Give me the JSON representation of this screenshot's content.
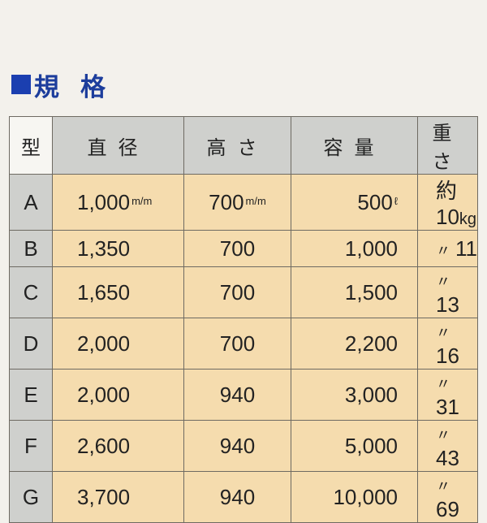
{
  "title": "規格",
  "columns": [
    "型",
    "直径",
    "高さ",
    "容量",
    "重さ"
  ],
  "rows": [
    {
      "type": "A",
      "diameter": "1,000",
      "diameter_unit": "m/m",
      "height": "700",
      "height_unit": "m/m",
      "capacity": "500",
      "capacity_unit": "ℓ",
      "weight_prefix": "約",
      "weight": "10",
      "weight_unit": "kg"
    },
    {
      "type": "B",
      "diameter": "1,350",
      "height": "700",
      "capacity": "1,000",
      "weight_prefix": "〃",
      "weight": "11"
    },
    {
      "type": "C",
      "diameter": "1,650",
      "height": "700",
      "capacity": "1,500",
      "weight_prefix": "〃",
      "weight": "13"
    },
    {
      "type": "D",
      "diameter": "2,000",
      "height": "700",
      "capacity": "2,200",
      "weight_prefix": "〃",
      "weight": "16"
    },
    {
      "type": "E",
      "diameter": "2,000",
      "height": "940",
      "capacity": "3,000",
      "weight_prefix": "〃",
      "weight": "31"
    },
    {
      "type": "F",
      "diameter": "2,600",
      "height": "940",
      "capacity": "5,000",
      "weight_prefix": "〃",
      "weight": "43"
    },
    {
      "type": "G",
      "diameter": "3,700",
      "height": "940",
      "capacity": "10,000",
      "weight_prefix": "〃",
      "weight": "69"
    }
  ],
  "colors": {
    "title": "#1c3d9c",
    "header": "#cfd0cd",
    "cell": "#f5dcae",
    "background": "#f3f1ec"
  }
}
